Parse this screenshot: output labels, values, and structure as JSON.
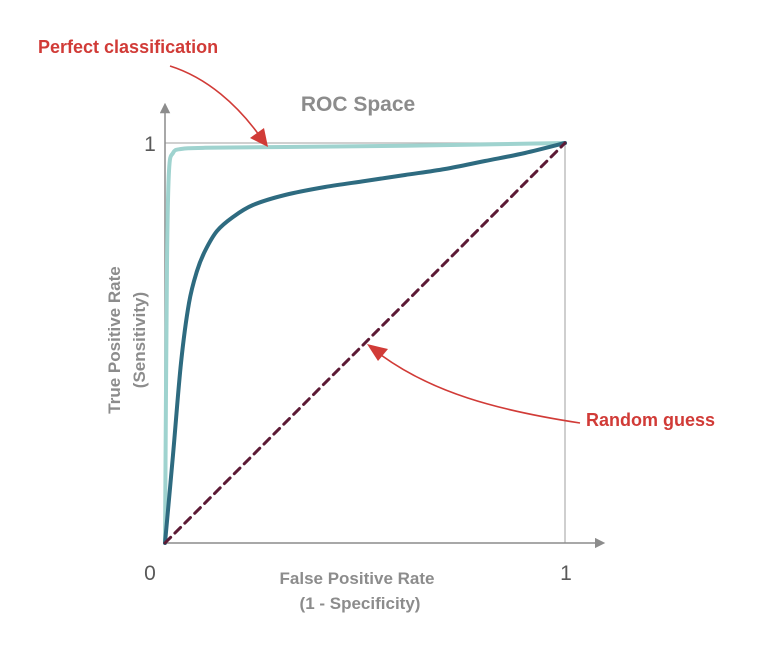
{
  "chart_data": {
    "type": "line",
    "title": "ROC Space",
    "xlabel": [
      "False Positive Rate",
      "(1 - Specificity)"
    ],
    "ylabel": [
      "True Positive Rate",
      "(Sensitivity)"
    ],
    "xlim": [
      0,
      1
    ],
    "ylim": [
      0,
      1
    ],
    "x_tick_labels": [
      "0",
      "1"
    ],
    "y_tick_labels": [
      "1"
    ],
    "grid": false,
    "series": [
      {
        "color": "#9fd3cf",
        "x": [
          0,
          0.005,
          0.01,
          0.02,
          0.04,
          0.1,
          0.3,
          0.6,
          1.0
        ],
        "y": [
          0,
          0.7,
          0.93,
          0.975,
          0.985,
          0.988,
          0.99,
          0.993,
          1.0
        ]
      },
      {
        "color": "#2e6b80",
        "x": [
          0,
          0.02,
          0.04,
          0.06,
          0.08,
          0.1,
          0.13,
          0.17,
          0.22,
          0.3,
          0.4,
          0.5,
          0.6,
          0.7,
          0.8,
          0.9,
          1.0
        ],
        "y": [
          0,
          0.22,
          0.45,
          0.6,
          0.68,
          0.73,
          0.78,
          0.815,
          0.845,
          0.87,
          0.89,
          0.905,
          0.92,
          0.935,
          0.955,
          0.975,
          1.0
        ]
      },
      {
        "color": "#5c1a35",
        "style": "dashed",
        "x": [
          0,
          1
        ],
        "y": [
          0,
          1
        ]
      }
    ],
    "annotations": [
      {
        "text": "Perfect classification",
        "color": "#d13b37"
      },
      {
        "text": "Random guess",
        "color": "#d13b37"
      }
    ]
  }
}
